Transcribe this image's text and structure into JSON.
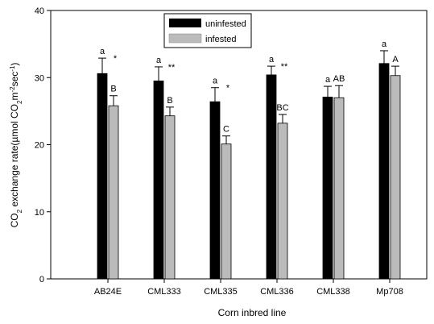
{
  "chart_data": {
    "type": "bar",
    "xlabel": "Corn inbred line",
    "ylabel": {
      "prefix": "CO",
      "sub1": "2",
      "mid1": " exchange rate(",
      "unit_u": "µmol CO",
      "sub2": "2",
      "mid2": "m",
      "sup1": "-2",
      "mid3": "sec",
      "sup2": "-1",
      "suffix": ")"
    },
    "ylim": [
      0,
      40
    ],
    "yticks": [
      0,
      10,
      20,
      30,
      40
    ],
    "grid": false,
    "legend_position": "top-center",
    "categories": [
      "AB24E",
      "CML333",
      "CML335",
      "CML336",
      "CML338",
      "Mp708"
    ],
    "series": [
      {
        "name": "uninfested",
        "color": "#000000",
        "values": [
          30.6,
          29.5,
          26.4,
          30.4,
          27.1,
          32.1
        ],
        "errors": [
          2.3,
          2.1,
          2.1,
          1.3,
          1.6,
          1.9
        ],
        "labels": [
          "a",
          "a",
          "a",
          "a",
          "a",
          "a"
        ]
      },
      {
        "name": "infested",
        "color": "#bbbbbb",
        "values": [
          25.8,
          24.3,
          20.1,
          23.2,
          27.0,
          30.3
        ],
        "errors": [
          1.5,
          1.3,
          1.2,
          1.3,
          1.8,
          1.4
        ],
        "labels": [
          "B",
          "B",
          "C",
          "BC",
          "AB",
          "A"
        ]
      }
    ],
    "significance": [
      "*",
      "**",
      "*",
      "**",
      "",
      ""
    ]
  }
}
